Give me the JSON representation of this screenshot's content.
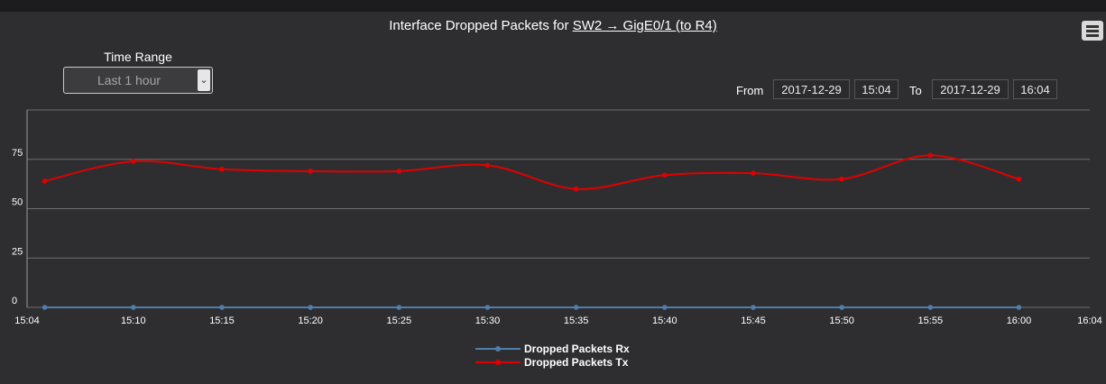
{
  "header": {
    "title_prefix": "Interface Dropped Packets for",
    "title_link": "SW2 → GigE0/1 (to R4)"
  },
  "icons": {
    "menu": "hamburger-menu-icon",
    "select_arrow": "chevron-down-icon"
  },
  "time_range": {
    "label": "Time Range",
    "value": "Last 1 hour"
  },
  "range": {
    "from_label": "From",
    "from_date": "2017-12-29",
    "from_time": "15:04",
    "to_label": "To",
    "to_date": "2017-12-29",
    "to_time": "16:04"
  },
  "colors": {
    "rx": "#4f7eab",
    "tx": "#e00000",
    "grid": "#6f6f6f",
    "background": "#2e2e31"
  },
  "chart_data": {
    "type": "line",
    "title": "Interface Dropped Packets for SW2 → GigE0/1 (to R4)",
    "x_ticks": [
      "15:04",
      "15:10",
      "15:15",
      "15:20",
      "15:25",
      "15:30",
      "15:35",
      "15:40",
      "15:45",
      "15:50",
      "15:55",
      "16:00",
      "16:04"
    ],
    "y_ticks": [
      0,
      25,
      50,
      75
    ],
    "xlim": [
      "15:04",
      "16:04"
    ],
    "ylim": [
      0,
      100
    ],
    "grid": true,
    "legend": "bottom",
    "series": [
      {
        "name": "Dropped Packets Rx",
        "points": [
          [
            "15:05",
            0
          ],
          [
            "15:10",
            0
          ],
          [
            "15:15",
            0
          ],
          [
            "15:20",
            0
          ],
          [
            "15:25",
            0
          ],
          [
            "15:30",
            0
          ],
          [
            "15:35",
            0
          ],
          [
            "15:40",
            0
          ],
          [
            "15:45",
            0
          ],
          [
            "15:50",
            0
          ],
          [
            "15:55",
            0
          ],
          [
            "16:00",
            0
          ]
        ]
      },
      {
        "name": "Dropped Packets Tx",
        "points": [
          [
            "15:05",
            64
          ],
          [
            "15:10",
            74
          ],
          [
            "15:15",
            70
          ],
          [
            "15:20",
            69
          ],
          [
            "15:25",
            69
          ],
          [
            "15:30",
            72
          ],
          [
            "15:35",
            60
          ],
          [
            "15:40",
            67
          ],
          [
            "15:45",
            68
          ],
          [
            "15:50",
            65
          ],
          [
            "15:55",
            77
          ],
          [
            "16:00",
            65
          ]
        ]
      }
    ]
  }
}
